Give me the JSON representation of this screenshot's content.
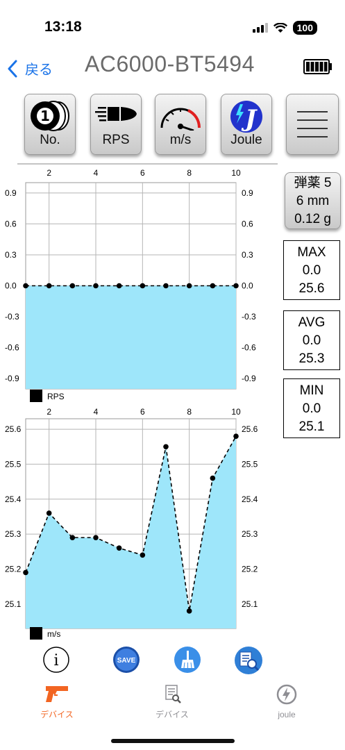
{
  "status_bar": {
    "time": "13:18",
    "battery": "100"
  },
  "nav": {
    "back_label": "戻る",
    "title": "AC6000-BT5494"
  },
  "toolbar": [
    {
      "id": "no",
      "label": "No.",
      "icon": "coin-stack-icon",
      "icon_text": "1"
    },
    {
      "id": "rps",
      "label": "RPS",
      "icon": "bullet-icon"
    },
    {
      "id": "ms",
      "label": "m/s",
      "icon": "speedometer-icon"
    },
    {
      "id": "joule",
      "label": "Joule",
      "icon": "joule-logo-icon",
      "icon_text": "J"
    },
    {
      "id": "menu",
      "label": "",
      "icon": "menu-icon"
    }
  ],
  "ammo": {
    "line1": "弾薬 5",
    "line2": "6 mm",
    "line3": "0.12 g"
  },
  "stats": {
    "max": {
      "label": "MAX",
      "rps": "0.0",
      "ms": "25.6"
    },
    "avg": {
      "label": "AVG",
      "rps": "0.0",
      "ms": "25.3"
    },
    "min": {
      "label": "MIN",
      "rps": "0.0",
      "ms": "25.1"
    }
  },
  "colors": {
    "fill": "#9ee6fa",
    "accent": "#1a73e8",
    "active_tab": "#f26522",
    "inactive_tab": "#8e8e93"
  },
  "chart_data": [
    {
      "type": "area",
      "legend": "RPS",
      "x": [
        1,
        2,
        3,
        4,
        5,
        6,
        7,
        8,
        9,
        10
      ],
      "y": [
        0,
        0,
        0,
        0,
        0,
        0,
        0,
        0,
        0,
        0
      ],
      "x_ticks": [
        2,
        4,
        6,
        8,
        10
      ],
      "y_ticks": [
        0.9,
        0.6,
        0.3,
        0.0,
        -0.3,
        -0.6,
        -0.9
      ],
      "y_tick_labels": [
        "0.9",
        "0.6",
        "0.3",
        "0.0",
        "-0.3",
        "-0.6",
        "-0.9"
      ],
      "ylim": [
        -1.0,
        1.0
      ],
      "xlim": [
        1,
        10
      ],
      "grid": true
    },
    {
      "type": "area",
      "legend": "m/s",
      "x": [
        1,
        2,
        3,
        4,
        5,
        6,
        7,
        8,
        9,
        10
      ],
      "y": [
        25.19,
        25.36,
        25.29,
        25.29,
        25.26,
        25.24,
        25.55,
        25.08,
        25.46,
        25.58
      ],
      "x_ticks": [
        2,
        4,
        6,
        8,
        10
      ],
      "y_ticks": [
        25.6,
        25.5,
        25.4,
        25.3,
        25.2,
        25.1
      ],
      "y_tick_labels": [
        "25.6",
        "25.5",
        "25.4",
        "25.3",
        "25.2",
        "25.1"
      ],
      "ylim": [
        25.03,
        25.63
      ],
      "xlim": [
        1,
        10
      ],
      "grid": true
    }
  ],
  "actions": [
    {
      "id": "info",
      "icon": "info-icon",
      "label": "i"
    },
    {
      "id": "save",
      "icon": "save-icon",
      "label": "SAVE"
    },
    {
      "id": "clear",
      "icon": "broom-icon"
    },
    {
      "id": "search-log",
      "icon": "document-search-icon"
    }
  ],
  "tabs": [
    {
      "id": "device",
      "label": "デバイス",
      "icon": "pistol-icon",
      "active": true
    },
    {
      "id": "log",
      "label": "デバイス",
      "icon": "document-icon",
      "active": false
    },
    {
      "id": "joule",
      "label": "joule",
      "icon": "bolt-circle-icon",
      "active": false
    }
  ]
}
